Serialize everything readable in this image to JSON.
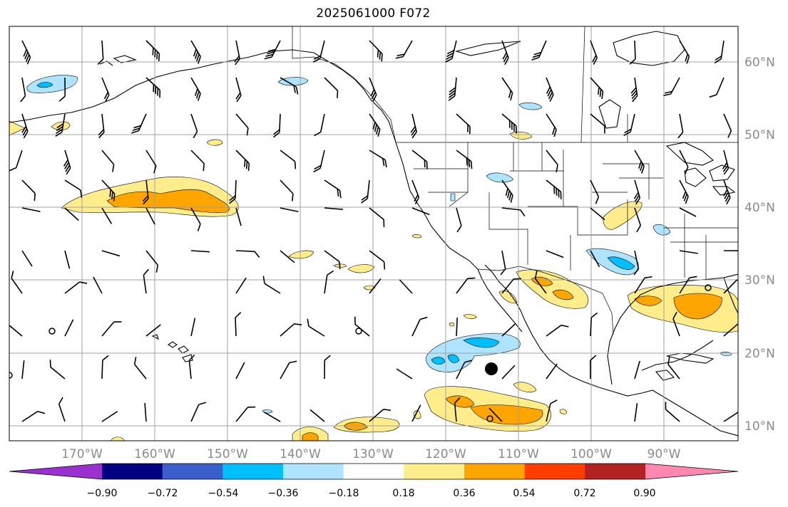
{
  "title": "2025061000 F072",
  "map": {
    "lat_ticks": [
      "60°N",
      "50°N",
      "40°N",
      "30°N",
      "20°N",
      "10°N"
    ],
    "lon_ticks": [
      "170°W",
      "160°W",
      "150°W",
      "140°W",
      "130°W",
      "120°W",
      "110°W",
      "100°W",
      "90°W"
    ],
    "lon_range": [
      -180,
      -80
    ],
    "lat_range": [
      8,
      65
    ],
    "gridlines": true
  },
  "colorbar": {
    "tick_labels": [
      "−0.90",
      "−0.72",
      "−0.54",
      "−0.36",
      "−0.18",
      "0.18",
      "0.36",
      "0.54",
      "0.72",
      "0.90"
    ],
    "colors": [
      "#9b30d0",
      "#000080",
      "#3a5fcd",
      "#00bfff",
      "#aee4ff",
      "#ffffff",
      "#ffec8b",
      "#ffa500",
      "#ff3d00",
      "#b22222",
      "#ff88b0"
    ],
    "extend": "both"
  },
  "anomaly_colors": {
    "pos_light": "#ffec8b",
    "pos_mid": "#ffa500",
    "neg_light": "#aee4ff",
    "neg_mid": "#00bfff"
  }
}
